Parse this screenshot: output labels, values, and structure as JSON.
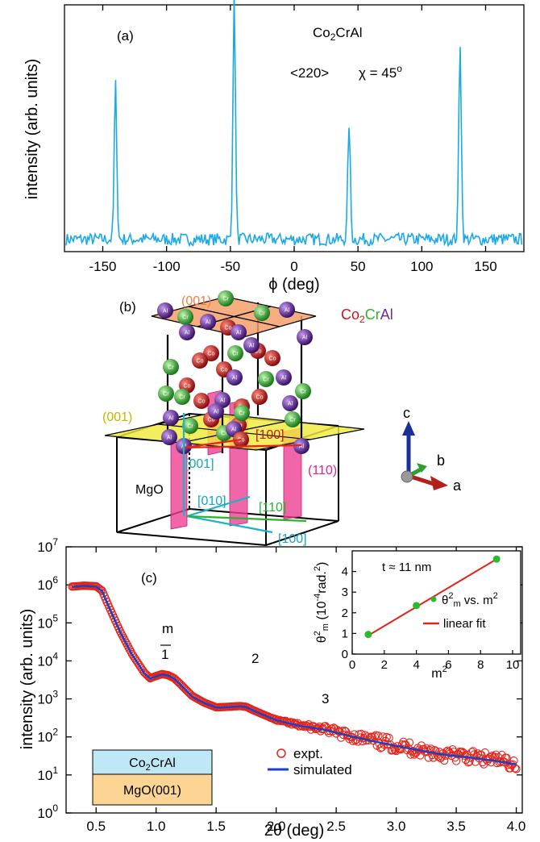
{
  "colors": {
    "phi_scan": "#1aa9e6",
    "expt": "#e3241b",
    "simulated": "#1f3fbf",
    "fit": "#e3241b",
    "inset_points": "#2db82d",
    "plane_001_top": "#f4a06a",
    "plane_001_mid": "#f0ea3c",
    "plane_110": "#ee3f94",
    "co_atom": "#c4161c",
    "cr_atom": "#2fb12f",
    "al_atom": "#6b2aa0",
    "layer_top": "#bfe8f6",
    "layer_bottom": "#fcd594"
  },
  "panel_a": {
    "label": "(a)",
    "compound": "Co2CrAl",
    "reflection": "<220>",
    "chi": "χ = 45°"
  },
  "panel_b": {
    "label": "(b)",
    "plane_top": "(001)",
    "plane_mid": "(001)",
    "plane_110": "(110)",
    "substrate": "MgO",
    "dir_100_film": "[100]",
    "dir_001": "[001]",
    "dir_010": "[010]",
    "dir_110": "[110]",
    "dir_100_sub": "[100]",
    "axis_a": "a",
    "axis_b": "b",
    "axis_c": "c",
    "atom_co": "Co",
    "atom_cr": "Cr",
    "atom_al": "Al",
    "compound_co": "Co",
    "compound_sub": "2",
    "compound_cr": "Cr",
    "compound_al": "Al"
  },
  "panel_c": {
    "label": "(c)",
    "order_header": "m",
    "orders": [
      "1",
      "2",
      "3"
    ],
    "stack_top": "Co2CrAl",
    "stack_bottom": "MgO(001)",
    "legend_expt": "expt.",
    "legend_sim": "simulated",
    "inset_thickness": "t ≈ 11 nm",
    "inset_legend_points": "θ²m vs. m²",
    "inset_legend_fit": "linear fit"
  },
  "chart_data": [
    {
      "type": "line",
      "panel": "(a)",
      "xlabel": "ϕ (deg)",
      "ylabel": "intensity (arb. units)",
      "xlim": [
        -180,
        180
      ],
      "xticks": [
        -150,
        -100,
        -50,
        0,
        50,
        100,
        150
      ],
      "yticks": [],
      "peaks": [
        {
          "x": -140,
          "height": 0.63
        },
        {
          "x": -47,
          "height": 0.98
        },
        {
          "x": 43,
          "height": 0.47
        },
        {
          "x": 130,
          "height": 0.8
        }
      ],
      "baseline": 0.05,
      "grid": false
    },
    {
      "type": "scatter",
      "panel": "(c)",
      "xlabel": "2θ (deg)",
      "ylabel": "intensity (arb. units)",
      "yscale": "log",
      "xlim": [
        0.25,
        4.05
      ],
      "ylim": [
        1,
        10000000
      ],
      "xticks": [
        0.5,
        1.0,
        1.5,
        2.0,
        2.5,
        3.0,
        3.5,
        4.0
      ],
      "ytick_exponents": [
        0,
        1,
        2,
        3,
        4,
        5,
        6,
        7
      ],
      "series": [
        {
          "name": "expt.",
          "style": "open-circles",
          "x": [
            0.3,
            0.4,
            0.5,
            0.55,
            0.6,
            0.7,
            0.8,
            0.9,
            0.95,
            1.0,
            1.05,
            1.1,
            1.15,
            1.2,
            1.3,
            1.4,
            1.5,
            1.6,
            1.7,
            1.75,
            1.8,
            1.9,
            2.0,
            2.2,
            2.4,
            2.6,
            2.8,
            3.0,
            3.2,
            3.4,
            3.6,
            3.8,
            4.0
          ],
          "y": [
            900000,
            950000,
            920000,
            700000,
            300000,
            60000,
            15000,
            5000,
            3500,
            4000,
            4500,
            4200,
            3500,
            2500,
            1200,
            800,
            600,
            620,
            650,
            620,
            520,
            380,
            280,
            200,
            160,
            110,
            80,
            60,
            45,
            35,
            30,
            25,
            20
          ]
        },
        {
          "name": "simulated",
          "style": "line",
          "x": [
            0.3,
            0.4,
            0.5,
            0.55,
            0.6,
            0.7,
            0.8,
            0.9,
            0.95,
            1.0,
            1.05,
            1.1,
            1.15,
            1.2,
            1.3,
            1.4,
            1.5,
            1.6,
            1.7,
            1.75,
            1.8,
            1.9,
            2.0,
            2.2,
            2.4,
            2.6,
            2.8,
            3.0,
            3.2,
            3.4,
            3.6,
            3.8,
            4.0
          ],
          "y": [
            880000,
            940000,
            900000,
            680000,
            290000,
            58000,
            14500,
            4800,
            3400,
            3900,
            4400,
            4100,
            3400,
            2400,
            1150,
            780,
            590,
            610,
            640,
            610,
            510,
            370,
            275,
            195,
            155,
            108,
            78,
            58,
            44,
            34,
            29,
            24,
            19
          ]
        }
      ]
    },
    {
      "type": "scatter",
      "panel": "(c) inset",
      "xlabel": "m²",
      "ylabel": "θ²m (10⁻⁴rad.²)",
      "xlim": [
        0,
        10.5
      ],
      "ylim": [
        0,
        5
      ],
      "xticks": [
        0,
        2,
        4,
        6,
        8,
        10
      ],
      "yticks": [
        0,
        1,
        2,
        3,
        4
      ],
      "series": [
        {
          "name": "θ²m vs. m²",
          "x": [
            1,
            4,
            9
          ],
          "y": [
            0.95,
            2.35,
            4.6
          ],
          "err": [
            0.15,
            0.15,
            0.12
          ]
        },
        {
          "name": "linear fit",
          "x": [
            1,
            9
          ],
          "y": [
            0.9,
            4.6
          ]
        }
      ]
    }
  ]
}
